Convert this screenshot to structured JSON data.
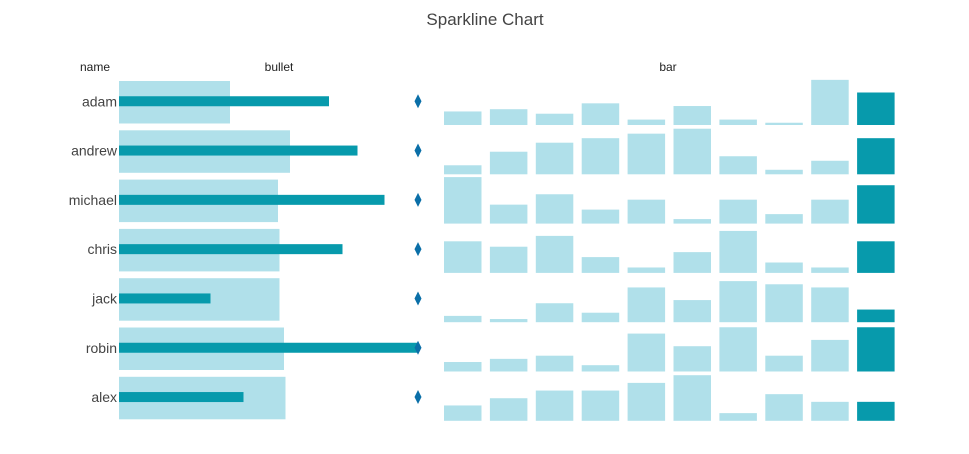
{
  "chart_data": {
    "type": "bar",
    "title": "Sparkline Chart",
    "columns": {
      "name": "name",
      "bullet": "bullet",
      "bar": "bar"
    },
    "names": [
      "adam",
      "andrew",
      "michael",
      "chris",
      "jack",
      "robin",
      "alex"
    ],
    "bullet": {
      "range": [
        0.37,
        0.57,
        0.53,
        0.535,
        0.535,
        0.55,
        0.555
      ],
      "value": [
        0.7,
        0.795,
        0.885,
        0.745,
        0.305,
        0.995,
        0.415
      ],
      "marker": [
        1,
        1,
        1,
        1,
        1,
        1,
        1
      ]
    },
    "bar_series": [
      [
        3,
        3.5,
        2.5,
        4.8,
        1.2,
        4.2,
        1.2,
        0.5,
        10,
        7.2
      ],
      [
        2,
        5,
        7,
        8,
        9,
        10.1,
        4,
        1,
        3,
        8
      ],
      [
        10.3,
        4.2,
        6.5,
        3.1,
        5.3,
        1,
        5.3,
        2.1,
        5.3,
        8.5
      ],
      [
        7,
        5.8,
        8.2,
        3.5,
        1.2,
        4.6,
        9.3,
        2.3,
        1.2,
        7
      ],
      [
        1.4,
        0.7,
        4.2,
        2.1,
        7.7,
        4.9,
        9.1,
        8.4,
        7.7,
        2.8
      ],
      [
        2.1,
        2.8,
        3.5,
        1.4,
        8.4,
        5.6,
        9.8,
        3.5,
        7,
        9.8
      ],
      [
        3.4,
        5,
        6.7,
        6.7,
        8.4,
        10.1,
        1.7,
        5.9,
        4.2,
        4.2
      ]
    ],
    "colors": {
      "light": "#b0e0ea",
      "dark": "#079aac",
      "marker": "#0a6fa8"
    }
  }
}
